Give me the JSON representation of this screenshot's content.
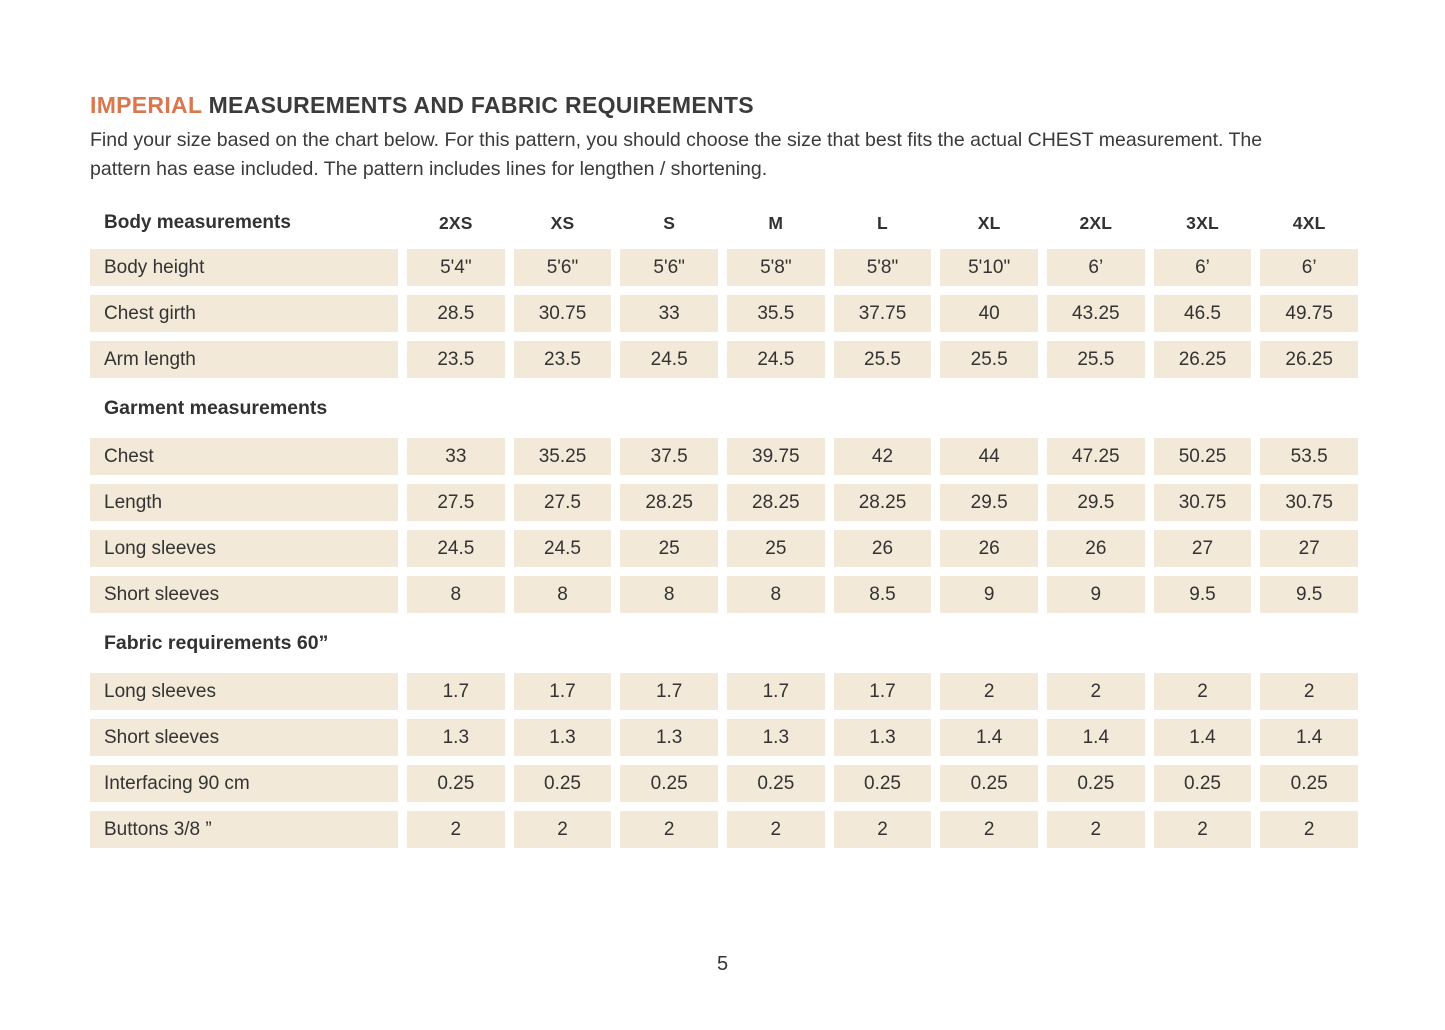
{
  "page": {
    "title": {
      "highlight": "IMPERIAL",
      "rest": " MEASUREMENTS AND FABRIC REQUIREMENTS"
    },
    "intro": "Find your size based on the chart below. For this pattern, you should choose the size that best fits the actual CHEST measurement. The pattern has ease included. The pattern includes lines for lengthen / shortening.",
    "page_number": "5"
  },
  "colors": {
    "accent_orange": "#d9784e",
    "cell_beige": "#f2e9d8",
    "text_dark": "#333333"
  },
  "table": {
    "corner_label": "Body measurements",
    "columns": [
      "2XS",
      "XS",
      "S",
      "M",
      "L",
      "XL",
      "2XL",
      "3XL",
      "4XL"
    ],
    "sections": [
      {
        "title": "",
        "rows": [
          {
            "label": "Body height",
            "values": [
              "5'4\"",
              "5'6\"",
              "5'6\"",
              "5'8\"",
              "5'8\"",
              "5'10\"",
              "6’",
              "6’",
              "6’"
            ]
          },
          {
            "label": "Chest girth",
            "values": [
              "28.5",
              "30.75",
              "33",
              "35.5",
              "37.75",
              "40",
              "43.25",
              "46.5",
              "49.75"
            ]
          },
          {
            "label": "Arm length",
            "values": [
              "23.5",
              "23.5",
              "24.5",
              "24.5",
              "25.5",
              "25.5",
              "25.5",
              "26.25",
              "26.25"
            ]
          }
        ]
      },
      {
        "title": "Garment measurements",
        "rows": [
          {
            "label": "Chest",
            "values": [
              "33",
              "35.25",
              "37.5",
              "39.75",
              "42",
              "44",
              "47.25",
              "50.25",
              "53.5"
            ]
          },
          {
            "label": "Length",
            "values": [
              "27.5",
              "27.5",
              "28.25",
              "28.25",
              "28.25",
              "29.5",
              "29.5",
              "30.75",
              "30.75"
            ]
          },
          {
            "label": "Long sleeves",
            "values": [
              "24.5",
              "24.5",
              "25",
              "25",
              "26",
              "26",
              "26",
              "27",
              "27"
            ]
          },
          {
            "label": "Short sleeves",
            "values": [
              "8",
              "8",
              "8",
              "8",
              "8.5",
              "9",
              "9",
              "9.5",
              "9.5"
            ]
          }
        ]
      },
      {
        "title": "Fabric requirements 60”",
        "rows": [
          {
            "label": "Long sleeves",
            "values": [
              "1.7",
              "1.7",
              "1.7",
              "1.7",
              "1.7",
              "2",
              "2",
              "2",
              "2"
            ]
          },
          {
            "label": "Short sleeves",
            "values": [
              "1.3",
              "1.3",
              "1.3",
              "1.3",
              "1.3",
              "1.4",
              "1.4",
              "1.4",
              "1.4"
            ]
          },
          {
            "label": "Interfacing 90 cm",
            "values": [
              "0.25",
              "0.25",
              "0.25",
              "0.25",
              "0.25",
              "0.25",
              "0.25",
              "0.25",
              "0.25"
            ]
          },
          {
            "label": "Buttons 3/8 ”",
            "values": [
              "2",
              "2",
              "2",
              "2",
              "2",
              "2",
              "2",
              "2",
              "2"
            ]
          }
        ]
      }
    ]
  }
}
